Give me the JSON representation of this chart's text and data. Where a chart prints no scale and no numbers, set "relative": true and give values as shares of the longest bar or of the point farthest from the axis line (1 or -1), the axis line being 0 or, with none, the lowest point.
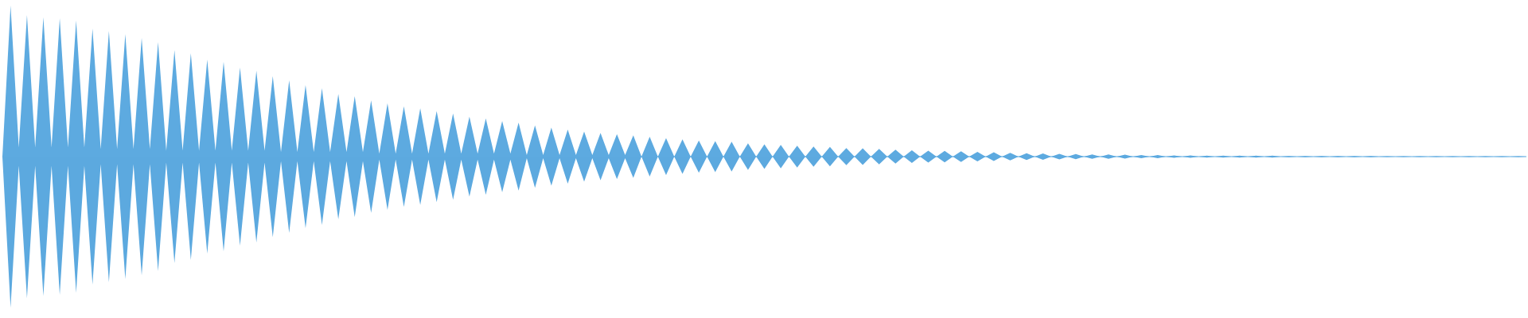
{
  "chart_data": {
    "type": "area",
    "relative": true,
    "categories": [
      null,
      null,
      null,
      null,
      null,
      null,
      null,
      null,
      null,
      null,
      null,
      null,
      null,
      null,
      null,
      null,
      null,
      null,
      null,
      null,
      null,
      null,
      null,
      null,
      null,
      null,
      null,
      null,
      null,
      null,
      null,
      null,
      null,
      null,
      null,
      null,
      null,
      null,
      null,
      null,
      null,
      null,
      null,
      null,
      null,
      null,
      null,
      null,
      null,
      null,
      null,
      null,
      null,
      null,
      null,
      null,
      null,
      null,
      null,
      null,
      null,
      null,
      null,
      null,
      null,
      null,
      null,
      null,
      null,
      null,
      null,
      null,
      null,
      null,
      null,
      null,
      null,
      null,
      null,
      null,
      null,
      null,
      null,
      null,
      null,
      null,
      null,
      null,
      null,
      null,
      null,
      null,
      null,
      null,
      null,
      null,
      null,
      null,
      null,
      null,
      null,
      null,
      null,
      null,
      null,
      null,
      null,
      null,
      null,
      null,
      null,
      null,
      null,
      null,
      null,
      null,
      null,
      null,
      null,
      null,
      null,
      null,
      null,
      null,
      null,
      null,
      null,
      null,
      null,
      null,
      null,
      null,
      null,
      null,
      null,
      null,
      null,
      null,
      null,
      null,
      null,
      null,
      null,
      null,
      null,
      null,
      null,
      null,
      null,
      null,
      null,
      null,
      null,
      null,
      null,
      null,
      null,
      null,
      null,
      null,
      null,
      null,
      null,
      null,
      null,
      null,
      null,
      null,
      null,
      null,
      null,
      null,
      null,
      null,
      null,
      null,
      null,
      null,
      null,
      null,
      null,
      null,
      null,
      null,
      null,
      null,
      null
    ],
    "series": [
      {
        "color": "#5daae0",
        "values": [
          0,
          1,
          0.06,
          0.937,
          0.06,
          0.922,
          0.06,
          0.916,
          0.06,
          0.901,
          0.06,
          0.848,
          0.05,
          0.832,
          0.05,
          0.811,
          0.05,
          0.785,
          0.05,
          0.758,
          0.04,
          0.705,
          0.04,
          0.684,
          0.04,
          0.642,
          0.04,
          0.627,
          0.04,
          0.589,
          0.04,
          0.568,
          0.04,
          0.533,
          0.03,
          0.505,
          0.03,
          0.474,
          0.03,
          0.453,
          0.03,
          0.415,
          0.03,
          0.4,
          0.03,
          0.373,
          0.02,
          0.352,
          0.02,
          0.333,
          0.02,
          0.32,
          0.02,
          0.301,
          0.02,
          0.286,
          0.02,
          0.265,
          0.02,
          0.253,
          0.02,
          0.236,
          0.02,
          0.225,
          0.01,
          0.206,
          0.01,
          0.192,
          0.01,
          0.179,
          0.01,
          0.166,
          0.01,
          0.156,
          0.01,
          0.149,
          0.01,
          0.141,
          0,
          0.131,
          0,
          0.122,
          0,
          0.114,
          0,
          0.107,
          0,
          0.103,
          0,
          0.099,
          0,
          0.088,
          0,
          0.082,
          0,
          0.078,
          0,
          0.072,
          0,
          0.067,
          0,
          0.065,
          0,
          0.057,
          0,
          0.055,
          0,
          0.051,
          0,
          0.046,
          0,
          0.042,
          0,
          0.04,
          0,
          0.038,
          0,
          0.036,
          0,
          0.032,
          0,
          0.029,
          0,
          0.025,
          0,
          0.023,
          0,
          0.021,
          0,
          0.019,
          0,
          0.017,
          0,
          0.015,
          0,
          0.015,
          0,
          0.013,
          0,
          0.011,
          0,
          0.011,
          0,
          0.008,
          0,
          0.008,
          0,
          0.006,
          0,
          0.006,
          0,
          0.006,
          0,
          0.006,
          0,
          0.006,
          0,
          0.004,
          0,
          0.004,
          0,
          0.004,
          0,
          0.004,
          0,
          0.004,
          0,
          0.004,
          0,
          0.002,
          0,
          0.002,
          0,
          0.002,
          0,
          0.002,
          0,
          0.002,
          0,
          0.002,
          0,
          0.002,
          0,
          0.002,
          0,
          0.002,
          0
        ]
      },
      {
        "color": "#5ca9df",
        "values": [
          0,
          -1,
          -0.06,
          -0.937,
          -0.06,
          -0.922,
          -0.06,
          -0.916,
          -0.06,
          -0.901,
          -0.06,
          -0.848,
          -0.05,
          -0.832,
          -0.05,
          -0.811,
          -0.05,
          -0.785,
          -0.05,
          -0.758,
          -0.04,
          -0.705,
          -0.04,
          -0.684,
          -0.04,
          -0.642,
          -0.04,
          -0.627,
          -0.04,
          -0.589,
          -0.04,
          -0.568,
          -0.04,
          -0.533,
          -0.03,
          -0.505,
          -0.03,
          -0.474,
          -0.03,
          -0.453,
          -0.03,
          -0.415,
          -0.03,
          -0.4,
          -0.03,
          -0.373,
          -0.02,
          -0.352,
          -0.02,
          -0.333,
          -0.02,
          -0.32,
          -0.02,
          -0.301,
          -0.02,
          -0.286,
          -0.02,
          -0.265,
          -0.02,
          -0.253,
          -0.02,
          -0.236,
          -0.02,
          -0.225,
          -0.01,
          -0.206,
          -0.01,
          -0.192,
          -0.01,
          -0.179,
          -0.01,
          -0.166,
          -0.01,
          -0.156,
          -0.01,
          -0.149,
          -0.01,
          -0.141,
          0,
          -0.131,
          0,
          -0.122,
          0,
          -0.114,
          0,
          -0.107,
          0,
          -0.103,
          0,
          -0.099,
          0,
          -0.088,
          0,
          -0.082,
          0,
          -0.078,
          0,
          -0.072,
          0,
          -0.067,
          0,
          -0.065,
          0,
          -0.057,
          0,
          -0.055,
          0,
          -0.051,
          0,
          -0.046,
          0,
          -0.042,
          0,
          -0.04,
          0,
          -0.038,
          0,
          -0.036,
          0,
          -0.032,
          0,
          -0.029,
          0,
          -0.025,
          0,
          -0.023,
          0,
          -0.021,
          0,
          -0.019,
          0,
          -0.017,
          0,
          -0.015,
          0,
          -0.015,
          0,
          -0.013,
          0,
          -0.011,
          0,
          -0.011,
          0,
          -0.008,
          0,
          -0.008,
          0,
          -0.006,
          0,
          -0.006,
          0,
          -0.006,
          0,
          -0.006,
          0,
          -0.006,
          0,
          -0.004,
          0,
          -0.004,
          0,
          -0.004,
          0,
          -0.004,
          0,
          -0.004,
          0,
          -0.004,
          0,
          -0.002,
          0,
          -0.002,
          0,
          -0.002,
          0,
          -0.002,
          0,
          -0.002,
          0,
          -0.002,
          0,
          -0.002,
          0,
          -0.002,
          0,
          -0.002,
          0
        ]
      }
    ]
  }
}
